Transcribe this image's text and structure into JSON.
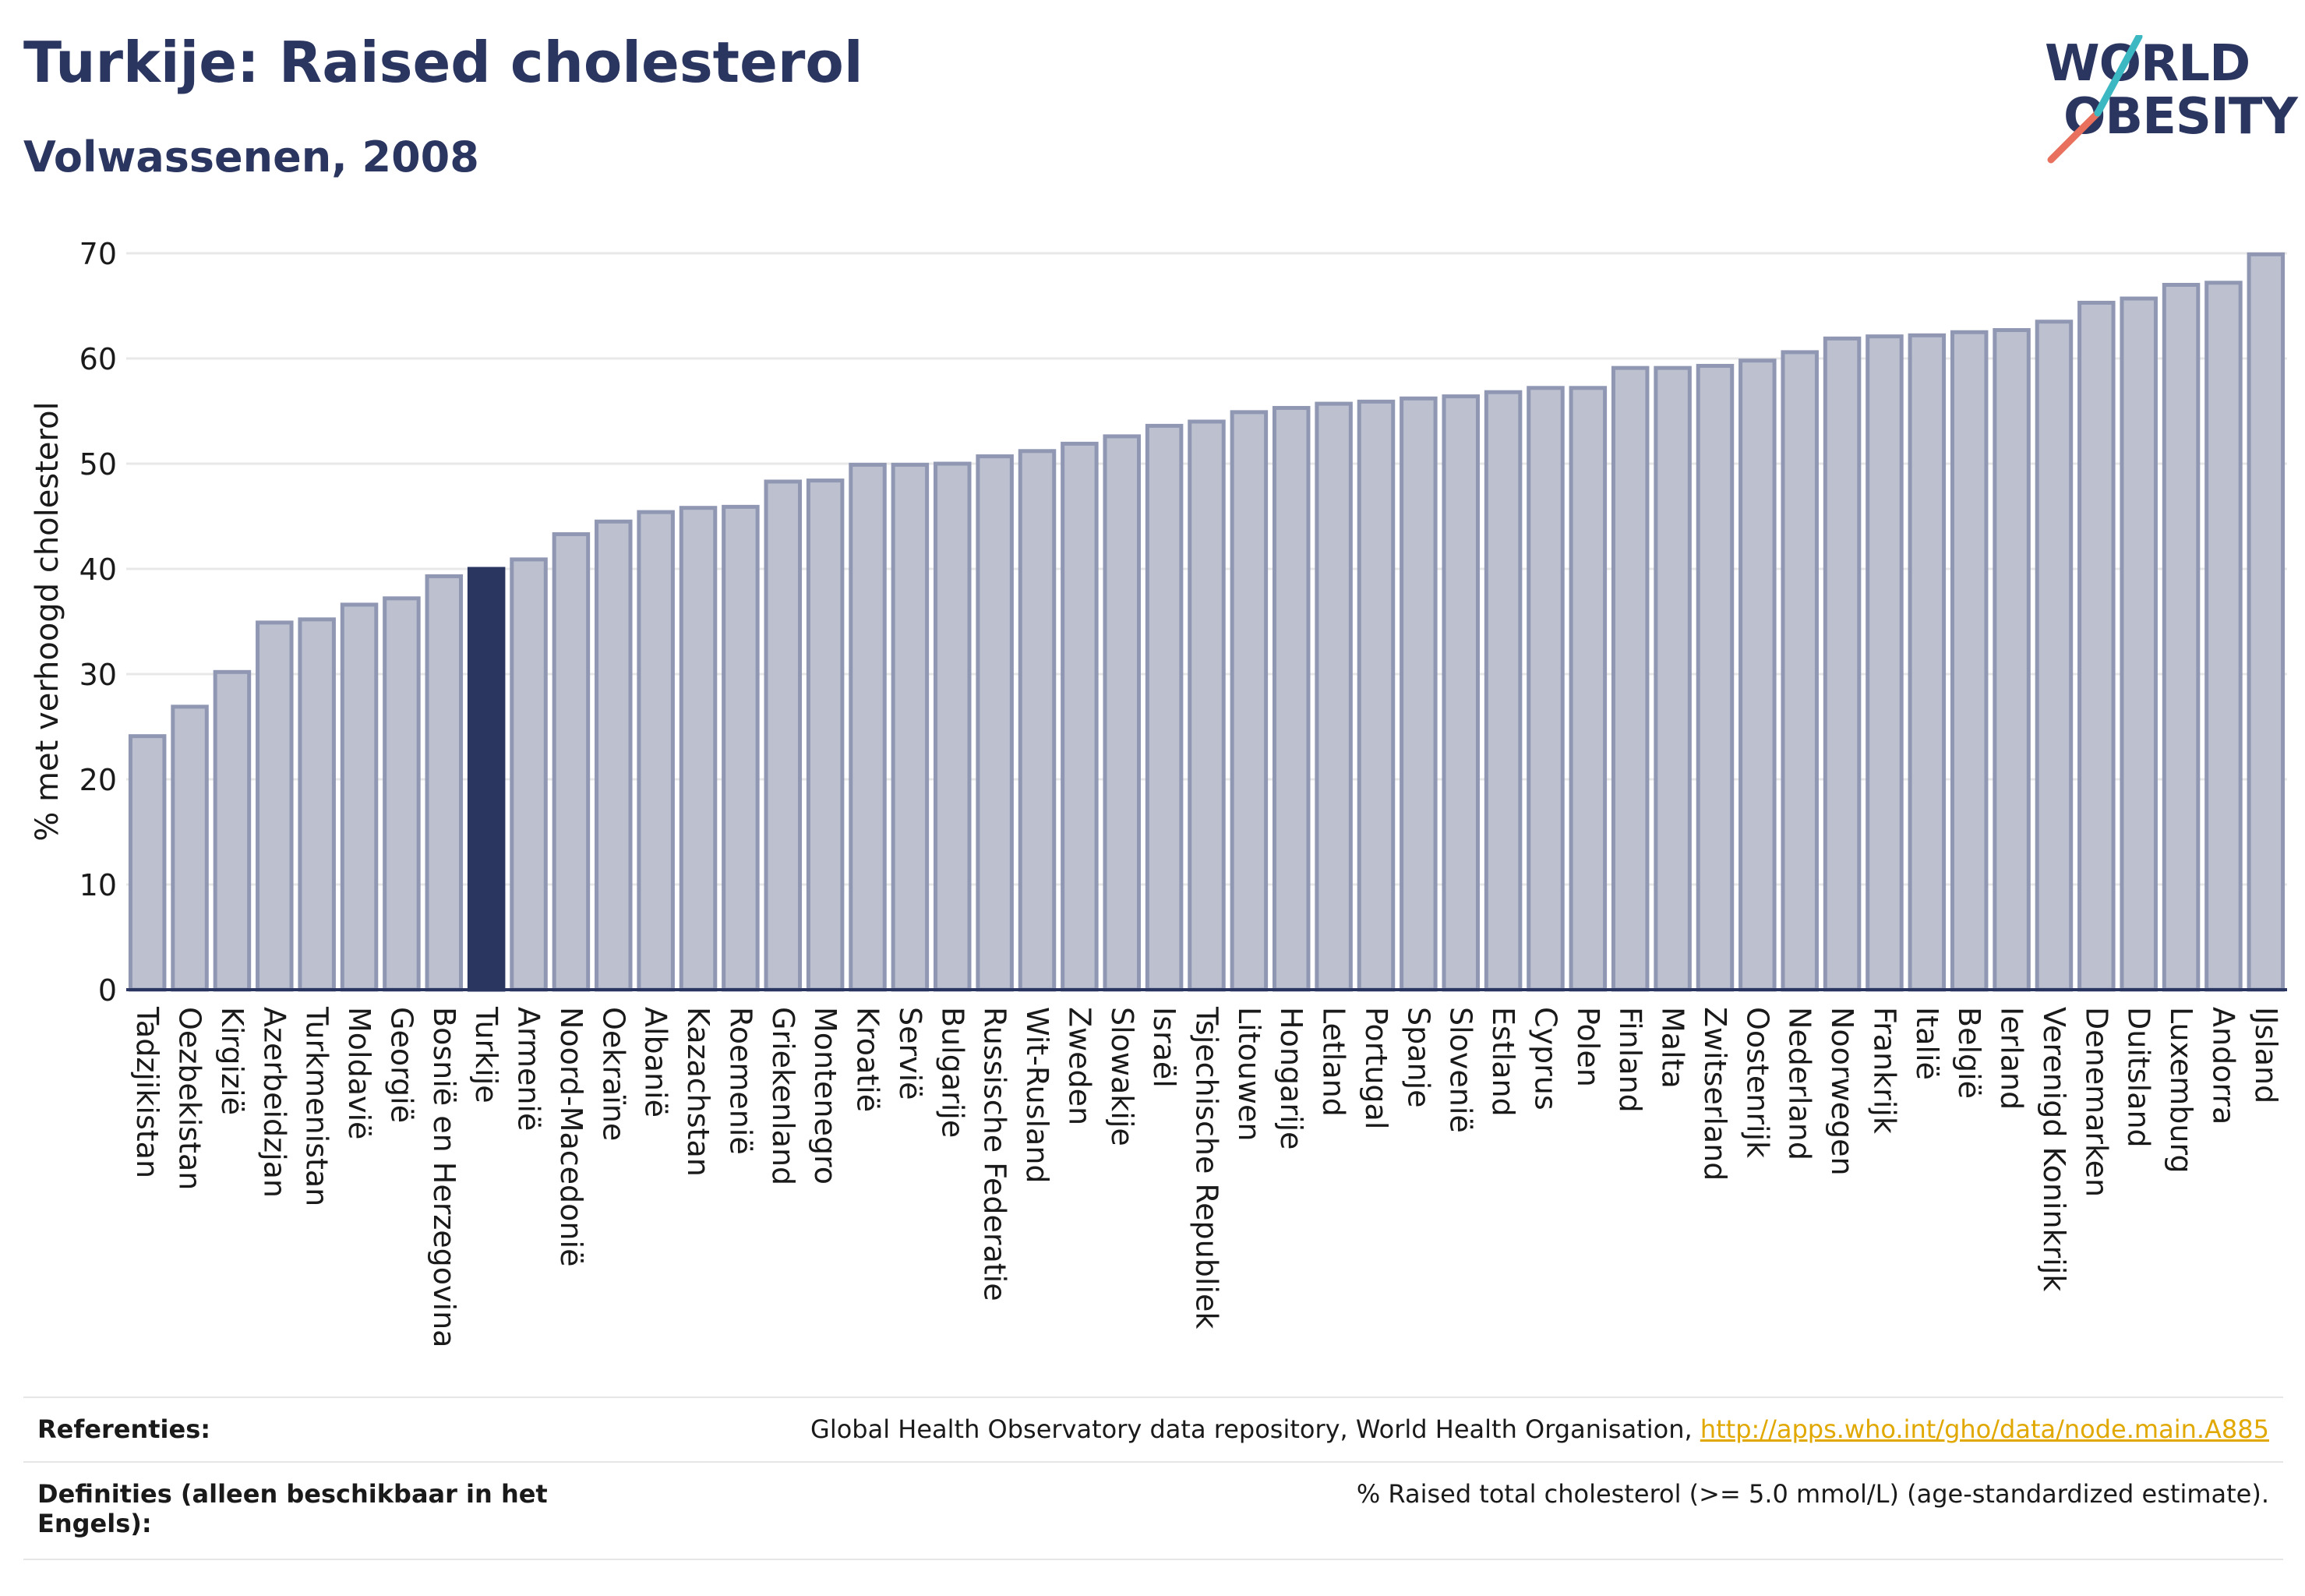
{
  "header": {
    "title": "Turkije: Raised cholesterol",
    "subtitle": "Volwassenen, 2008"
  },
  "logo": {
    "line1": "WORLD",
    "line2": "OBESITY"
  },
  "colors": {
    "highlight": "#2a3560",
    "bar_fill": "#bcc0cf",
    "bar_stroke": "#8f97b3",
    "axis": "#2a3560",
    "grid": "#e8e8e8",
    "logo_teal": "#3cb8c2",
    "logo_coral": "#e8705c"
  },
  "chart_data": {
    "type": "bar",
    "ylabel": "% met verhoogd cholesterol",
    "ylim": [
      0,
      70
    ],
    "yticks": [
      0,
      10,
      20,
      30,
      40,
      50,
      60,
      70
    ],
    "highlight": "Turkije",
    "grid": "horizontal",
    "categories": [
      "Tadzjikistan",
      "Oezbekistan",
      "Kirgizië",
      "Azerbeidzjan",
      "Turkmenistan",
      "Moldavië",
      "Georgië",
      "Bosnië en Herzegovina",
      "Turkije",
      "Armenië",
      "Noord-Macedonië",
      "Oekraïne",
      "Albanië",
      "Kazachstan",
      "Roemenië",
      "Griekenland",
      "Montenegro",
      "Kroatië",
      "Servië",
      "Bulgarije",
      "Russische Federatie",
      "Wit-Rusland",
      "Zweden",
      "Slowakije",
      "Israël",
      "Tsjechische Republiek",
      "Litouwen",
      "Hongarije",
      "Letland",
      "Portugal",
      "Spanje",
      "Slovenië",
      "Estland",
      "Cyprus",
      "Polen",
      "Finland",
      "Malta",
      "Zwitserland",
      "Oostenrijk",
      "Nederland",
      "Noorwegen",
      "Frankrijk",
      "Italië",
      "België",
      "Ierland",
      "Verenigd Koninkrijk",
      "Denemarken",
      "Duitsland",
      "Luxemburg",
      "Andorra",
      "IJsland"
    ],
    "values": [
      24.1,
      26.9,
      30.2,
      34.9,
      35.2,
      36.6,
      37.2,
      39.3,
      40.0,
      40.9,
      43.3,
      44.5,
      45.4,
      45.8,
      45.9,
      48.3,
      48.4,
      49.9,
      49.9,
      50.0,
      50.7,
      51.2,
      51.9,
      52.6,
      53.6,
      54.0,
      54.9,
      55.3,
      55.7,
      55.9,
      56.2,
      56.4,
      56.8,
      57.2,
      57.2,
      59.1,
      59.1,
      59.3,
      59.8,
      60.6,
      61.9,
      62.1,
      62.2,
      62.5,
      62.7,
      63.5,
      65.3,
      65.7,
      67.0,
      67.2,
      69.9
    ]
  },
  "footer": {
    "ref_label": "Referenties:",
    "ref_text": "Global Health Observatory data repository, World Health Organisation, ",
    "ref_link": "http://apps.who.int/gho/data/node.main.A885",
    "def_label_1": "Definities (alleen beschikbaar in het",
    "def_label_2": "Engels):",
    "def_text": "% Raised total cholesterol (>= 5.0 mmol/L) (age-standardized estimate)."
  }
}
